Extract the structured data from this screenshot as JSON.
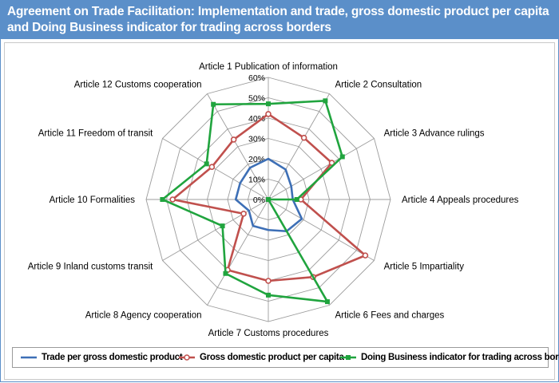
{
  "header": {
    "title_line1": "Agreement on Trade Facilitation: Implementation and trade, gross domestic product per capita",
    "title_line2": "and Doing Business indicator for trading across borders"
  },
  "chart_data": {
    "type": "radar",
    "categories": [
      "Article 1 Publication of information",
      "Article 2 Consultation",
      "Article 3 Advance rulings",
      "Article 4 Appeals procedures",
      "Article 5 Impartiality",
      "Article 6 Fees and charges",
      "Article 7 Customs procedures",
      "Article 8 Agency cooperation",
      "Article 9 Inland customs transit",
      "Article 10 Formalities",
      "Article 11 Freedom of transit",
      "Article 12 Customs cooperation"
    ],
    "tick_labels": [
      "0%",
      "10%",
      "20%",
      "30%",
      "40%",
      "50%",
      "60%"
    ],
    "rlim": [
      0,
      60
    ],
    "grid": true,
    "legend_position": "bottom",
    "series": [
      {
        "name": "Trade per gross domestic product",
        "color": "#3d6fb6",
        "marker": "none",
        "values": [
          20,
          17,
          13,
          12,
          19,
          18,
          15,
          15,
          11,
          16,
          16,
          18
        ]
      },
      {
        "name": "Gross domestic product per capita",
        "color": "#c0504d",
        "marker": "circle",
        "values": [
          42,
          35,
          36,
          16,
          55,
          44,
          40,
          40,
          14,
          47,
          32,
          34
        ]
      },
      {
        "name": "Doing Business indicator for trading across borders",
        "color": "#20a43e",
        "marker": "square",
        "values": [
          47,
          56,
          42,
          14,
          0,
          58,
          47,
          42,
          26,
          52,
          35,
          54
        ]
      }
    ]
  }
}
